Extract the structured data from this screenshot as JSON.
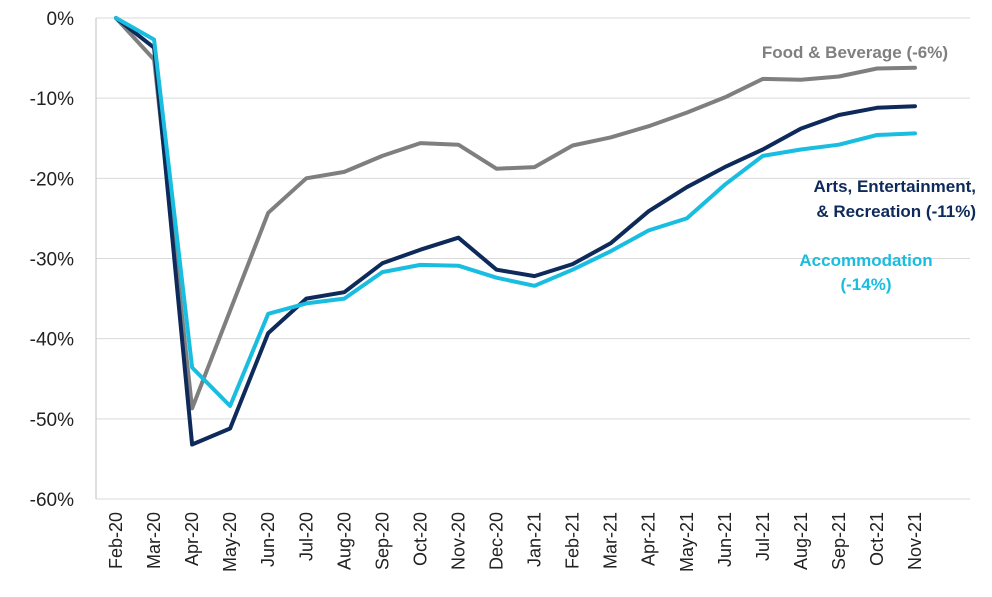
{
  "chart_data": {
    "type": "line",
    "title": "",
    "xlabel": "",
    "ylabel": "",
    "ylim": [
      -60,
      0
    ],
    "yticks": [
      0,
      -10,
      -20,
      -30,
      -40,
      -50,
      -60
    ],
    "ytick_labels": [
      "0%",
      "-10%",
      "-20%",
      "-30%",
      "-40%",
      "-50%",
      "-60%"
    ],
    "grid": "horizontal",
    "legend": "inline labels at right",
    "categories": [
      "Feb-20",
      "Mar-20",
      "Apr-20",
      "May-20",
      "Jun-20",
      "Jul-20",
      "Aug-20",
      "Sep-20",
      "Oct-20",
      "Nov-20",
      "Dec-20",
      "Jan-21",
      "Feb-21",
      "Mar-21",
      "Apr-21",
      "May-21",
      "Jun-21",
      "Jul-21",
      "Aug-21",
      "Sep-21",
      "Oct-21",
      "Nov-21"
    ],
    "series": [
      {
        "key": "food",
        "name": "Food & Beverage (-6%)",
        "label_lines": [
          "Food & Beverage (-6%)"
        ],
        "color": "#7f7f7f",
        "values": [
          0,
          -5.2,
          -48.7,
          -36.5,
          -24.3,
          -20.0,
          -19.2,
          -17.2,
          -15.6,
          -15.8,
          -18.8,
          -18.6,
          -15.9,
          -14.9,
          -13.5,
          -11.8,
          -9.9,
          -7.6,
          -7.7,
          -7.3,
          -6.3,
          -6.2
        ]
      },
      {
        "key": "arts",
        "name": "Arts, Entertainment, & Recreation (-11%)",
        "label_lines": [
          "Arts, Entertainment,",
          "& Recreation (-11%)"
        ],
        "color": "#0d2a5a",
        "values": [
          0,
          -3.7,
          -53.2,
          -51.2,
          -39.3,
          -35.0,
          -34.2,
          -30.6,
          -28.9,
          -27.4,
          -31.4,
          -32.2,
          -30.7,
          -28.1,
          -24.1,
          -21.1,
          -18.6,
          -16.4,
          -13.8,
          -12.1,
          -11.2,
          -11.0
        ]
      },
      {
        "key": "accom",
        "name": "Accommodation (-14%)",
        "label_lines": [
          "Accommodation",
          "(-14%)"
        ],
        "color": "#19bde0",
        "values": [
          0,
          -2.7,
          -43.6,
          -48.4,
          -36.9,
          -35.6,
          -35.0,
          -31.7,
          -30.8,
          -30.9,
          -32.4,
          -33.4,
          -31.4,
          -29.1,
          -26.5,
          -25.0,
          -20.8,
          -17.2,
          -16.4,
          -15.8,
          -14.6,
          -14.4
        ]
      }
    ]
  }
}
